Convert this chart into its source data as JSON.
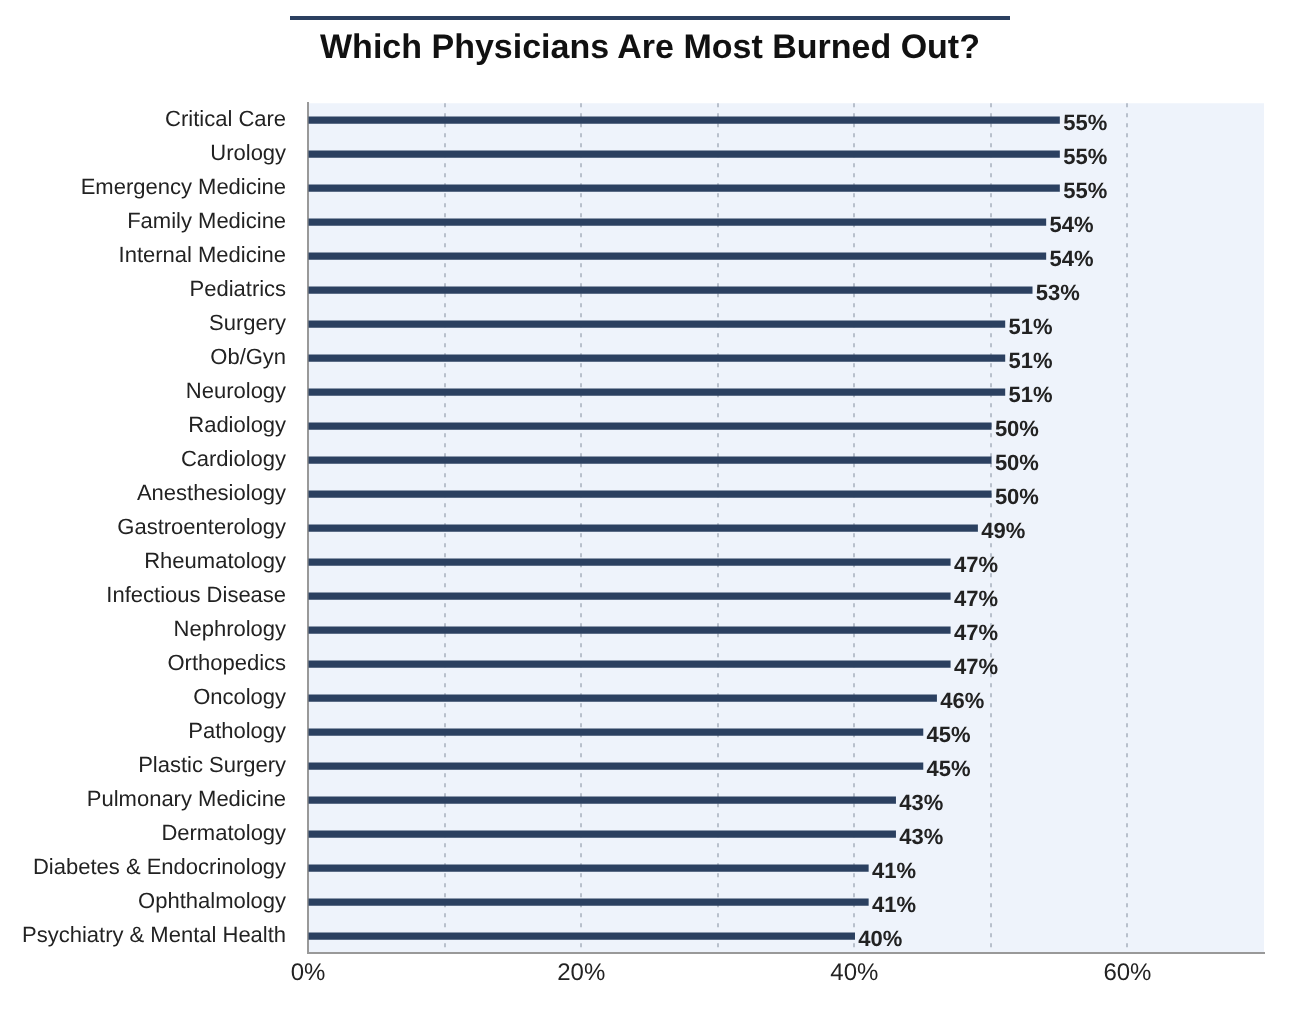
{
  "chart_data": {
    "type": "bar",
    "orientation": "horizontal",
    "title": "Which Physicians Are Most Burned Out?",
    "categories": [
      "Critical Care",
      "Urology",
      "Emergency Medicine",
      "Family Medicine",
      "Internal Medicine",
      "Pediatrics",
      "Surgery",
      "Ob/Gyn",
      "Neurology",
      "Radiology",
      "Cardiology",
      "Anesthesiology",
      "Gastroenterology",
      "Rheumatology",
      "Infectious Disease",
      "Nephrology",
      "Orthopedics",
      "Oncology",
      "Pathology",
      "Plastic Surgery",
      "Pulmonary Medicine",
      "Dermatology",
      "Diabetes & Endocrinology",
      "Ophthalmology",
      "Psychiatry & Mental Health"
    ],
    "values": [
      55,
      55,
      55,
      54,
      54,
      53,
      51,
      51,
      51,
      50,
      50,
      50,
      49,
      47,
      47,
      47,
      47,
      46,
      45,
      45,
      43,
      43,
      41,
      41,
      40
    ],
    "value_labels": [
      "55%",
      "55%",
      "55%",
      "54%",
      "54%",
      "53%",
      "51%",
      "51%",
      "51%",
      "50%",
      "50%",
      "50%",
      "49%",
      "47%",
      "47%",
      "47%",
      "47%",
      "46%",
      "45%",
      "45%",
      "43%",
      "43%",
      "41%",
      "41%",
      "40%"
    ],
    "color": "#2b4060",
    "xlim": [
      0,
      70
    ],
    "xticks": [
      {
        "value": 0,
        "label": "0%"
      },
      {
        "value": 10,
        "label": null
      },
      {
        "value": 20,
        "label": "20%"
      },
      {
        "value": 30,
        "label": null
      },
      {
        "value": 40,
        "label": "40%"
      },
      {
        "value": 50,
        "label": null
      },
      {
        "value": 60,
        "label": "60%"
      }
    ],
    "grid": "x"
  }
}
